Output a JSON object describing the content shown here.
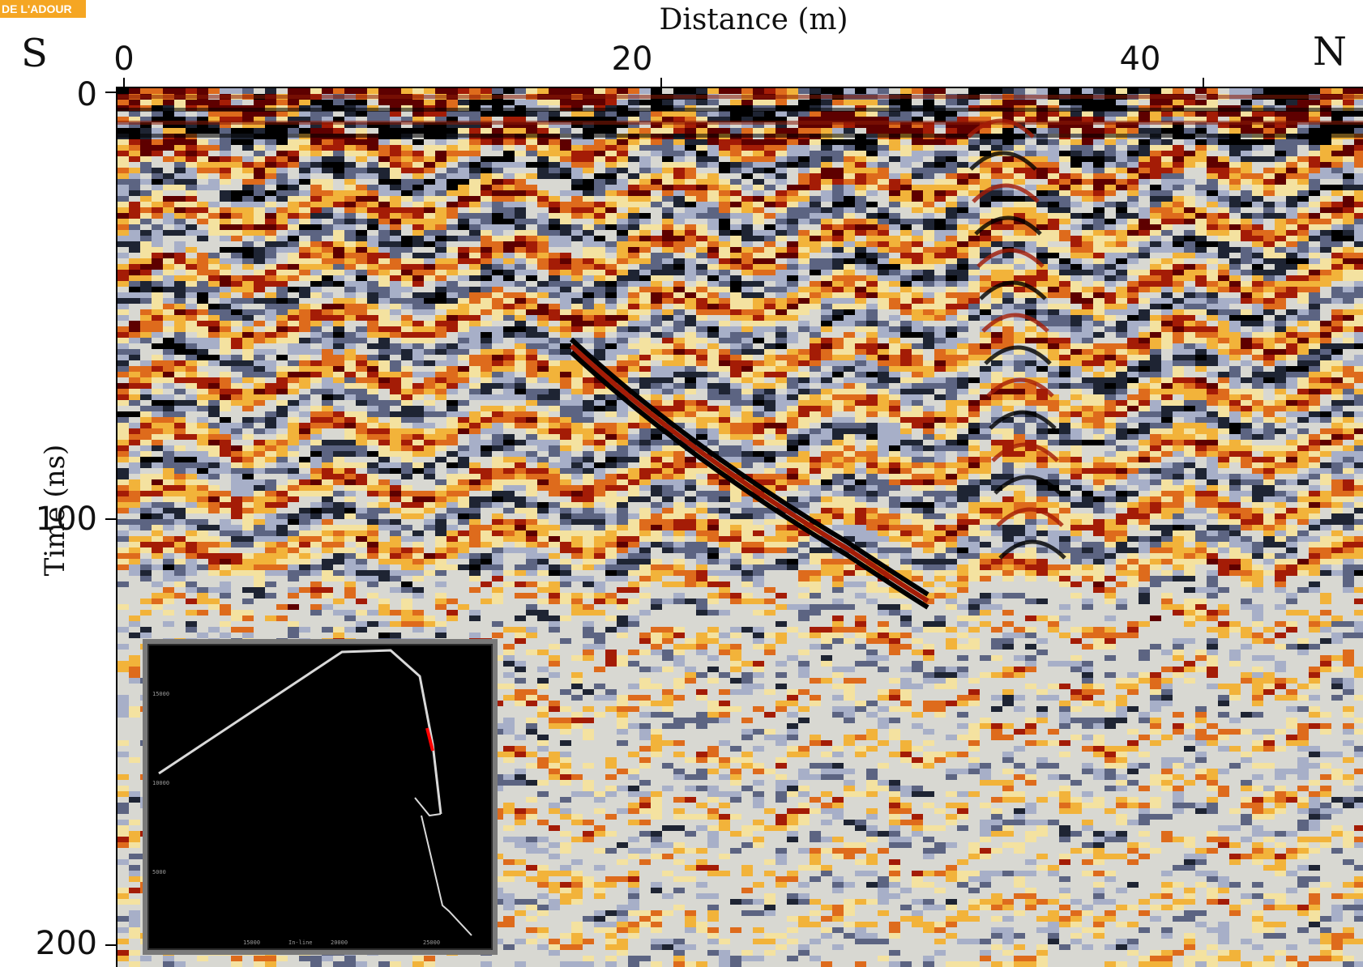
{
  "header_logo": {
    "text": "DE L'ADOUR",
    "color": "#f5a623"
  },
  "figure": {
    "x_axis_label": "Distance (m)",
    "y_axis_label": "Time (ns)",
    "direction_left": "S",
    "direction_right": "N",
    "x_ticks": [
      "0",
      "20",
      "40"
    ],
    "y_ticks": [
      "0",
      "100",
      "200"
    ],
    "x_range_m": [
      0,
      45
    ],
    "y_range_ns": [
      0,
      200
    ]
  },
  "colormap": [
    "#000000",
    "#1e2433",
    "#5c6482",
    "#a7afc8",
    "#d8d8d2",
    "#f4e2a0",
    "#f2b33a",
    "#de6b1c",
    "#a41c06",
    "#5e0000"
  ],
  "inset_map": {
    "y_tick_labels": [
      "15000",
      "10000",
      "5000"
    ],
    "x_tick_labels": [
      "15000",
      "In-line",
      "20000",
      "25000"
    ],
    "track_color": "#d9d9d9",
    "highlight_color": "#ff0000"
  }
}
